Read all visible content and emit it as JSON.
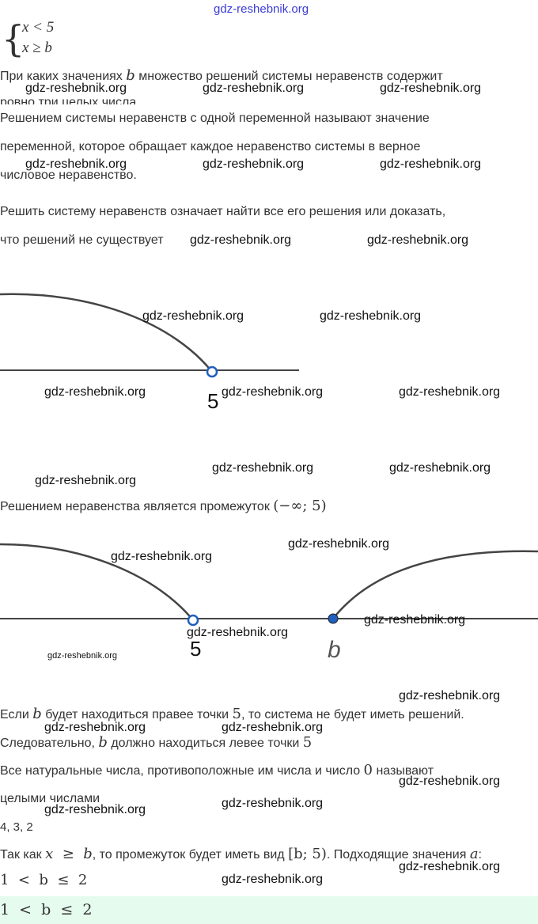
{
  "watermark": "gdz-reshebnik.org",
  "system": {
    "line1": "x  <  5",
    "line2": "x  ≥  b"
  },
  "question": {
    "p1": "При каких значениях ",
    "var": "b",
    "p2": " множество решений системы неравенств содержит",
    "line2": "ровно три целых числа"
  },
  "definition": {
    "l1": "Решением системы неравенств с одной переменной называют значение",
    "l2": "переменной, которое обращает каждое неравенство системы в верное",
    "l3": "числовое неравенство."
  },
  "solve_def": {
    "l1": "Решить систему неравенств означает найти все его решения или доказать,",
    "l2": "что решений не существует"
  },
  "graph1": {
    "point_label": "5"
  },
  "interval": {
    "text": "Решением неравенства является промежуток ",
    "math": "(−∞; 5)"
  },
  "graph2": {
    "point1_label": "5",
    "point2_label": "b"
  },
  "reasoning": {
    "l1a": "Если ",
    "l1b": "b",
    "l1c": " будет находиться правее точки ",
    "l1d": "5",
    "l1e": ", то система не будет иметь решений.",
    "l2a": "Следовательно, ",
    "l2b": "b",
    "l2c": " должно находиться левее точки ",
    "l2d": "5"
  },
  "integers": {
    "l1a": "Все натуральные числа, противоположные им числа и число ",
    "l1b": "0",
    "l1c": " называют",
    "l2": "целыми числами"
  },
  "values": "4, 3, 2",
  "conclusion": {
    "a": "Так как ",
    "b": "x  ≥  b",
    "c": ", то промежуток будет иметь вид ",
    "d": "[b; 5)",
    "e": ". Подходящие значения ",
    "f": "a",
    "g": ":"
  },
  "result": "1  <  b  ≤  2",
  "answer": "1  <  b  ≤  2",
  "colors": {
    "answer_bg": "#e4fbee",
    "point": "#1f5fbf"
  }
}
